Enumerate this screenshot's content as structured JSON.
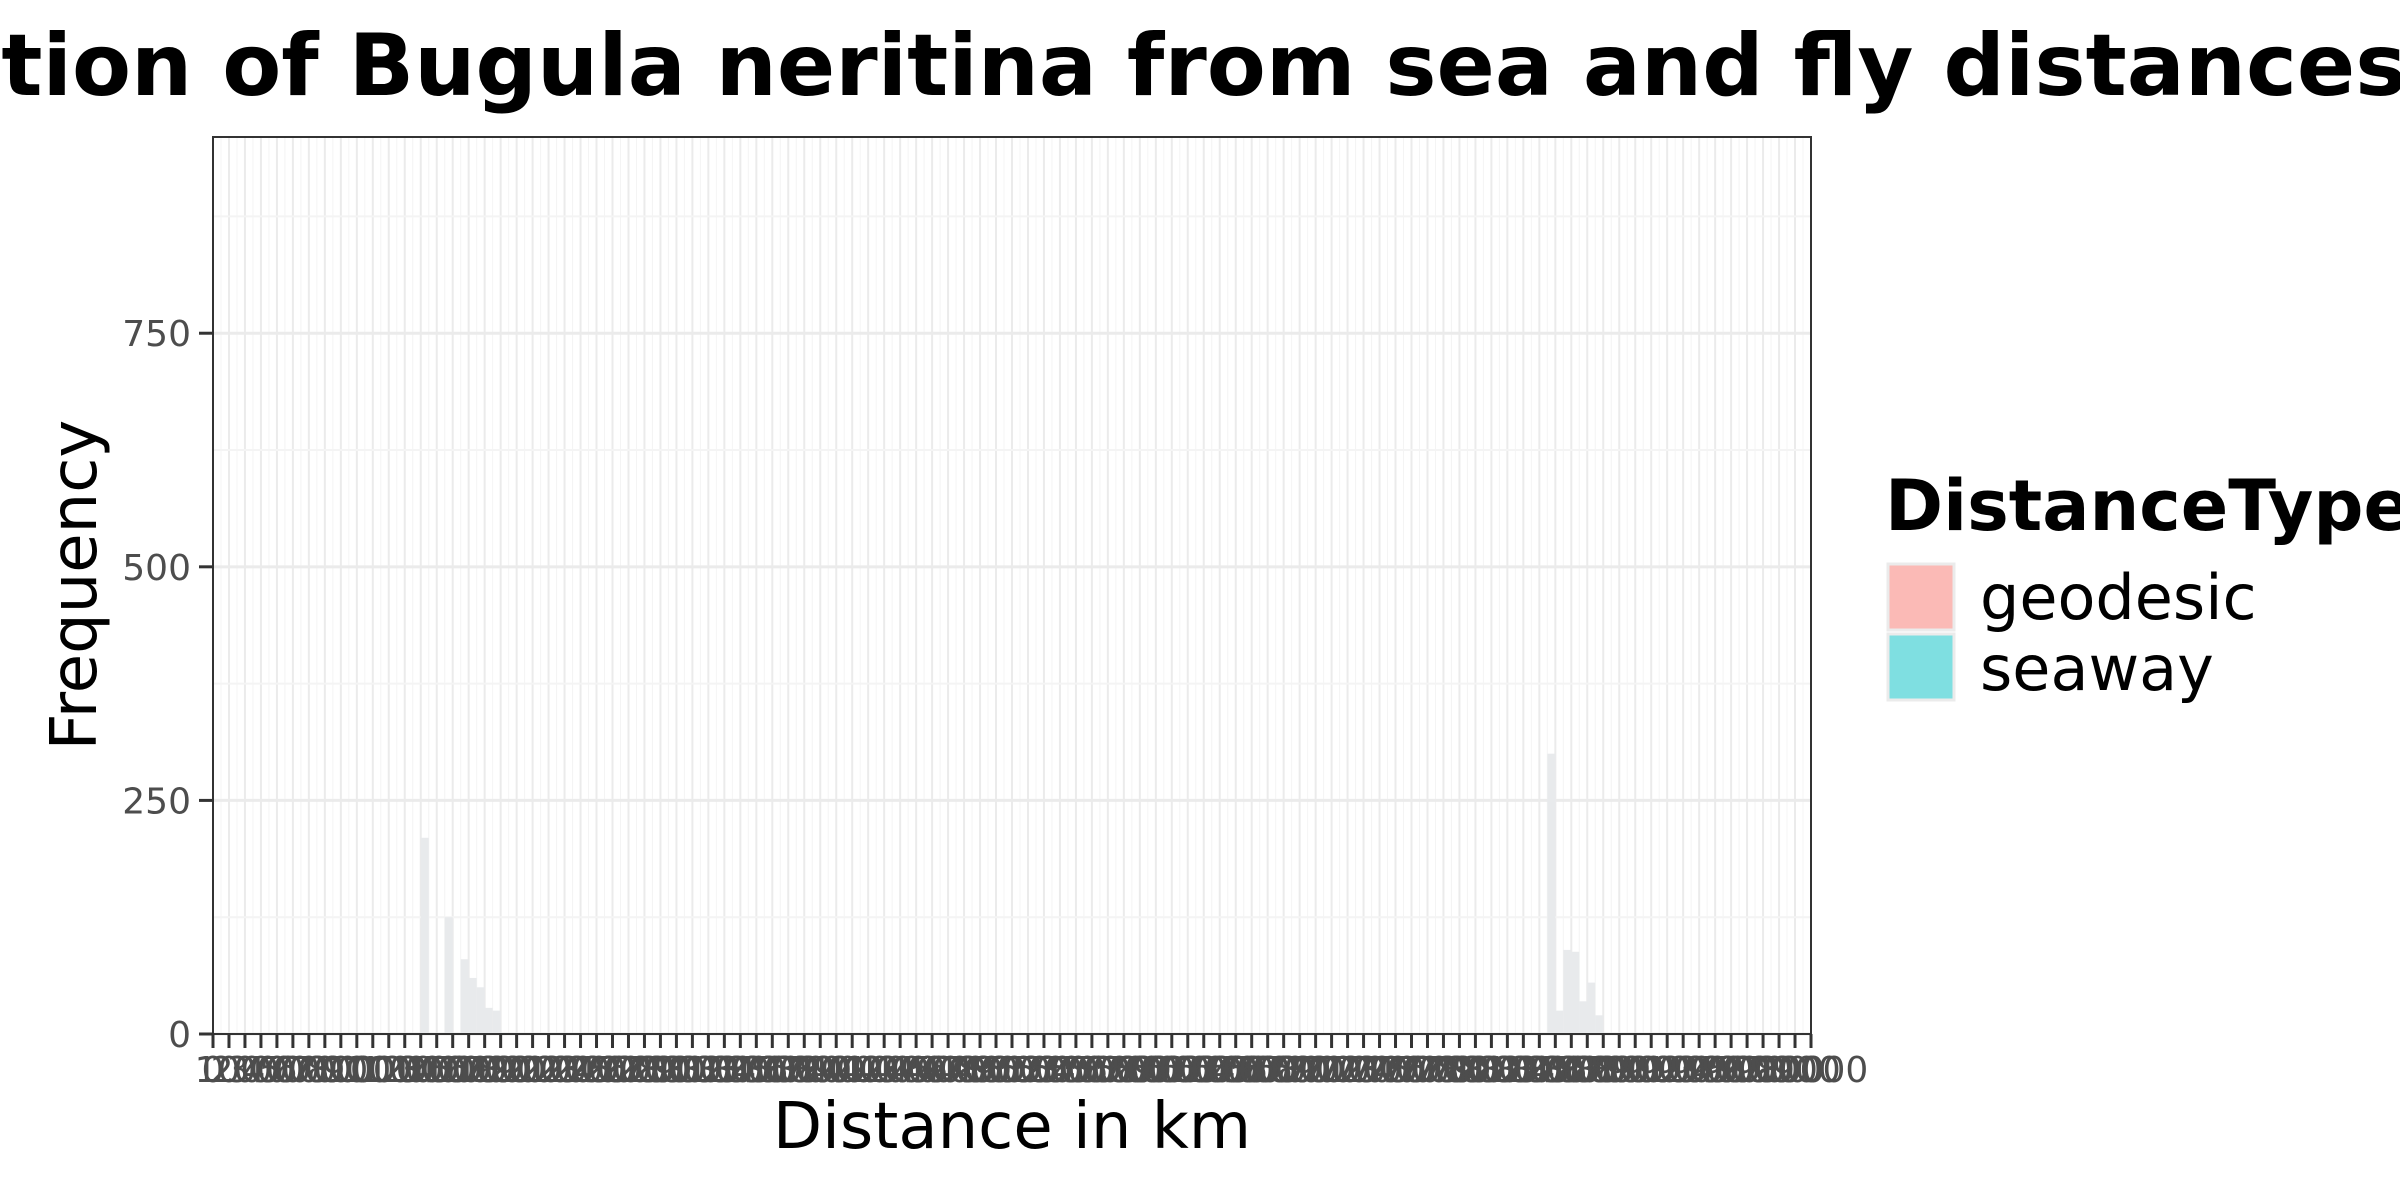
{
  "chart_data": {
    "type": "bar",
    "title": "Distribution of Bugula neritina from sea and fly distances",
    "xlabel": "Distance in km",
    "ylabel": "Frequency",
    "xlim": [
      0,
      10000
    ],
    "ylim": [
      0,
      960
    ],
    "y_ticks": [
      0,
      250,
      500,
      750
    ],
    "x_tick_step": 100,
    "grid": true,
    "legend": {
      "title": "DistanceType",
      "placement": "right",
      "entries": [
        {
          "label": "geodesic",
          "color": "#f8766d"
        },
        {
          "label": "seaway",
          "color": "#00bfc4"
        }
      ]
    },
    "bar_fill_alpha": 0.5,
    "bar_display_color": "#e8eaec",
    "bin_width": 50,
    "bins": [
      {
        "x_start": 1300,
        "value": 210
      },
      {
        "x_start": 1450,
        "value": 125
      },
      {
        "x_start": 1550,
        "value": 80
      },
      {
        "x_start": 1600,
        "value": 60
      },
      {
        "x_start": 1650,
        "value": 50
      },
      {
        "x_start": 1700,
        "value": 28
      },
      {
        "x_start": 1750,
        "value": 25
      },
      {
        "x_start": 8350,
        "value": 300
      },
      {
        "x_start": 8400,
        "value": 25
      },
      {
        "x_start": 8450,
        "value": 90
      },
      {
        "x_start": 8500,
        "value": 88
      },
      {
        "x_start": 8550,
        "value": 35
      },
      {
        "x_start": 8600,
        "value": 55
      },
      {
        "x_start": 8650,
        "value": 20
      }
    ]
  }
}
